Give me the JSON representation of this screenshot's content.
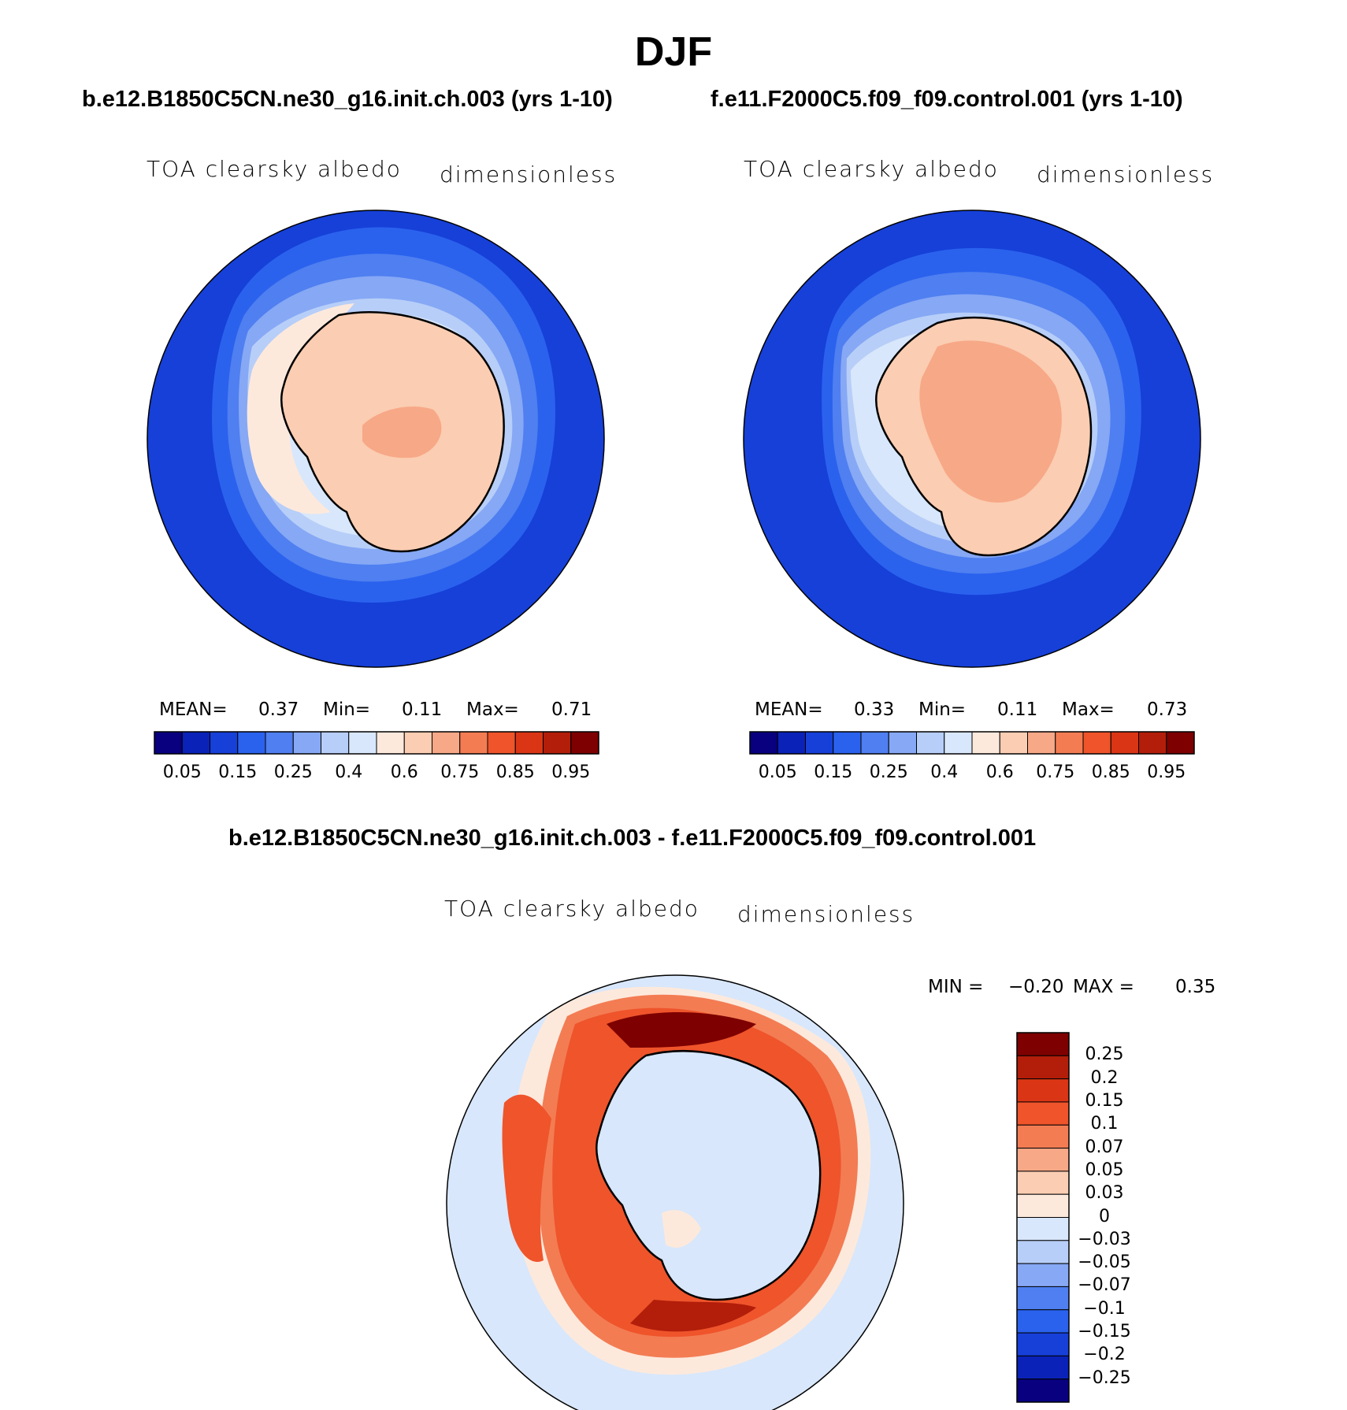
{
  "main_title": "DJF",
  "colors": {
    "abs_levels": [
      "#08007f",
      "#0a22b8",
      "#1640d8",
      "#2a62ee",
      "#4f7ff0",
      "#86a8f5",
      "#b7cef8",
      "#d8e7fb",
      "#fde9dc",
      "#fbcdb2",
      "#f7a887",
      "#f37c53",
      "#ef542b",
      "#da3615",
      "#b21e0a",
      "#7e0000"
    ],
    "diff_levels": [
      "#08007f",
      "#0a22b8",
      "#1640d8",
      "#2a62ee",
      "#4f7ff0",
      "#86a8f5",
      "#b7cef8",
      "#d8e7fb",
      "#fde9dc",
      "#fbcdb2",
      "#f7a887",
      "#f37c53",
      "#ef542b",
      "#da3615",
      "#b21e0a",
      "#7e0000"
    ]
  },
  "panels": {
    "left": {
      "title": "b.e12.B1850C5CN.ne30_g16.init.ch.003 (yrs 1-10)",
      "variable": "TOA clearsky albedo",
      "units": "dimensionless",
      "mean_label": "MEAN=",
      "mean_value": "0.37",
      "min_label": "Min=",
      "min_value": "0.11",
      "max_label": "Max=",
      "max_value": "0.71",
      "colorbar_ticks": [
        "0.05",
        "0.15",
        "0.25",
        "0.4",
        "0.6",
        "0.75",
        "0.85",
        "0.95"
      ]
    },
    "right": {
      "title": "f.e11.F2000C5.f09_f09.control.001 (yrs 1-10)",
      "variable": "TOA clearsky albedo",
      "units": "dimensionless",
      "mean_label": "MEAN=",
      "mean_value": "0.33",
      "min_label": "Min=",
      "min_value": "0.11",
      "max_label": "Max=",
      "max_value": "0.73",
      "colorbar_ticks": [
        "0.05",
        "0.15",
        "0.25",
        "0.4",
        "0.6",
        "0.75",
        "0.85",
        "0.95"
      ]
    },
    "diff": {
      "title": "b.e12.B1850C5CN.ne30_g16.init.ch.003 - f.e11.F2000C5.f09_f09.control.001",
      "variable": "TOA clearsky albedo",
      "units": "dimensionless",
      "min_label": "MIN =",
      "min_value": "−0.20",
      "max_label": "MAX =",
      "max_value": "0.35",
      "colorbar_ticks": [
        "0.25",
        "0.2",
        "0.15",
        "0.1",
        "0.07",
        "0.05",
        "0.03",
        "0",
        "−0.03",
        "−0.05",
        "−0.07",
        "−0.1",
        "−0.15",
        "−0.2",
        "−0.25"
      ]
    }
  },
  "chart_data": [
    {
      "type": "heatmap",
      "projection": "south polar stereographic",
      "title": "b.e12.B1850C5CN.ne30_g16.init.ch.003 (yrs 1-10)",
      "variable": "TOA clearsky albedo",
      "units": "dimensionless",
      "stats": {
        "mean": 0.37,
        "min": 0.11,
        "max": 0.71
      },
      "contour_levels": [
        0.05,
        0.1,
        0.15,
        0.2,
        0.25,
        0.3,
        0.4,
        0.5,
        0.6,
        0.7,
        0.75,
        0.8,
        0.85,
        0.9,
        0.95
      ]
    },
    {
      "type": "heatmap",
      "projection": "south polar stereographic",
      "title": "f.e11.F2000C5.f09_f09.control.001 (yrs 1-10)",
      "variable": "TOA clearsky albedo",
      "units": "dimensionless",
      "stats": {
        "mean": 0.33,
        "min": 0.11,
        "max": 0.73
      },
      "contour_levels": [
        0.05,
        0.1,
        0.15,
        0.2,
        0.25,
        0.3,
        0.4,
        0.5,
        0.6,
        0.7,
        0.75,
        0.8,
        0.85,
        0.9,
        0.95
      ]
    },
    {
      "type": "heatmap",
      "projection": "south polar stereographic",
      "title": "b.e12.B1850C5CN.ne30_g16.init.ch.003 - f.e11.F2000C5.f09_f09.control.001",
      "variable": "TOA clearsky albedo",
      "units": "dimensionless",
      "stats": {
        "min": -0.2,
        "max": 0.35
      },
      "contour_levels": [
        -0.25,
        -0.2,
        -0.15,
        -0.1,
        -0.07,
        -0.05,
        -0.03,
        0,
        0.03,
        0.05,
        0.07,
        0.1,
        0.15,
        0.2,
        0.25
      ]
    }
  ]
}
